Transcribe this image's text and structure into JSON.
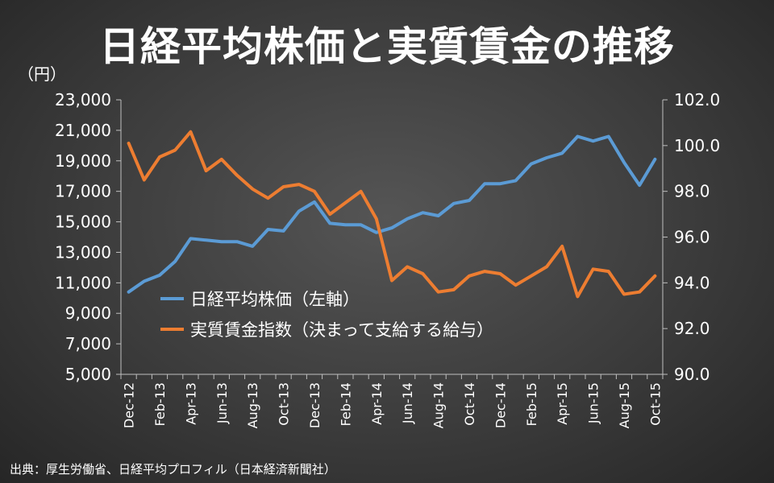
{
  "chart_data": {
    "type": "line",
    "title": "日経平均株価と実質賃金の推移",
    "y_left_unit": "（円）",
    "source": "出典：厚生労働省、日経平均プロフィル（日本経済新聞社）",
    "x": [
      "Dec-12",
      "Jan-13",
      "Feb-13",
      "Mar-13",
      "Apr-13",
      "May-13",
      "Jun-13",
      "Jul-13",
      "Aug-13",
      "Sep-13",
      "Oct-13",
      "Nov-13",
      "Dec-13",
      "Jan-14",
      "Feb-14",
      "Mar-14",
      "Apr-14",
      "May-14",
      "Jun-14",
      "Jul-14",
      "Aug-14",
      "Sep-14",
      "Oct-14",
      "Nov-14",
      "Dec-14",
      "Jan-15",
      "Feb-15",
      "Mar-15",
      "Apr-15",
      "May-15",
      "Jun-15",
      "Jul-15",
      "Aug-15",
      "Sep-15",
      "Oct-15"
    ],
    "x_tick_labels": [
      "Dec-12",
      "Feb-13",
      "Apr-13",
      "Jun-13",
      "Aug-13",
      "Oct-13",
      "Dec-13",
      "Feb-14",
      "Apr-14",
      "Jun-14",
      "Aug-14",
      "Oct-14",
      "Dec-14",
      "Feb-15",
      "Apr-15",
      "Jun-15",
      "Aug-15",
      "Oct-15"
    ],
    "y_left": {
      "ylim": [
        5000,
        23000
      ],
      "ticks": [
        "5,000",
        "7,000",
        "9,000",
        "11,000",
        "13,000",
        "15,000",
        "17,000",
        "19,000",
        "21,000",
        "23,000"
      ]
    },
    "y_right": {
      "ylim": [
        90.0,
        102.0
      ],
      "ticks": [
        "90.0",
        "92.0",
        "94.0",
        "96.0",
        "98.0",
        "100.0",
        "102.0"
      ]
    },
    "series": [
      {
        "name": "日経平均株価（左軸）",
        "axis": "left",
        "color": "#5B9BD5",
        "values": [
          10400,
          11100,
          11500,
          12400,
          13900,
          13800,
          13700,
          13700,
          13400,
          14500,
          14400,
          15700,
          16300,
          14900,
          14800,
          14800,
          14300,
          14600,
          15200,
          15600,
          15400,
          16200,
          16400,
          17500,
          17500,
          17700,
          18800,
          19200,
          19500,
          20600,
          20300,
          20600,
          18900,
          17400,
          19100
        ]
      },
      {
        "name": "実質賃金指数（決まって支給する給与）",
        "axis": "right",
        "color": "#ED7D31",
        "values": [
          100.1,
          98.5,
          99.5,
          99.8,
          100.6,
          98.9,
          99.4,
          98.7,
          98.1,
          97.7,
          98.2,
          98.3,
          98.0,
          97.0,
          97.5,
          98.0,
          96.8,
          94.1,
          94.7,
          94.4,
          93.6,
          93.7,
          94.3,
          94.5,
          94.4,
          93.9,
          94.3,
          94.7,
          95.6,
          93.4,
          94.6,
          94.5,
          93.5,
          93.6,
          94.3
        ]
      }
    ],
    "grid": "vertical-none",
    "legend": "inside-left"
  }
}
